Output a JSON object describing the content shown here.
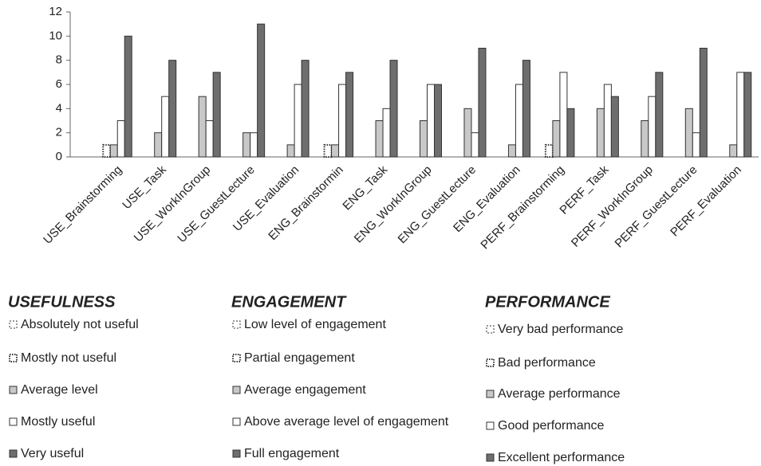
{
  "chart_data": {
    "type": "bar",
    "categories": [
      "USE_Brainstorming",
      "USE_Task",
      "USE_WorkInGroup",
      "USE_GuestLecture",
      "USE_Evaluation",
      "ENG_Brainstormin",
      "ENG_Task",
      "ENG_WorkInGroup",
      "ENG_GuestLecture",
      "ENG_Evaluation",
      "PERF_Brainstorming",
      "PERF_Task",
      "PERF_WorkInGroup",
      "PERF_GuestLecture",
      "PERF_Evaluation"
    ],
    "series": [
      {
        "color": "#ffffff",
        "values": [
          0,
          0,
          0,
          0,
          0,
          0,
          0,
          0,
          0,
          0,
          0,
          0,
          0,
          0,
          0
        ]
      },
      {
        "color": "#ffffff",
        "values": [
          1,
          0,
          0,
          0,
          0,
          1,
          0,
          0,
          0,
          0,
          1,
          0,
          0,
          0,
          0
        ]
      },
      {
        "color": "#c8c8c8",
        "values": [
          1,
          2,
          5,
          2,
          1,
          1,
          3,
          3,
          4,
          1,
          3,
          4,
          3,
          4,
          1
        ]
      },
      {
        "color": "#ffffff",
        "values": [
          3,
          5,
          3,
          2,
          6,
          6,
          4,
          6,
          2,
          6,
          7,
          6,
          5,
          2,
          7
        ]
      },
      {
        "color": "#6e6e6e",
        "values": [
          10,
          8,
          7,
          11,
          8,
          7,
          8,
          6,
          9,
          8,
          4,
          5,
          7,
          9,
          7
        ]
      }
    ],
    "ylim": [
      0,
      12
    ],
    "yticks": [
      0,
      2,
      4,
      6,
      8,
      10,
      12
    ],
    "legend_groups": [
      {
        "title": "USEFULNESS",
        "items": [
          "Absolutely not useful",
          "Mostly not useful",
          "Average level",
          "Mostly useful",
          "Very useful"
        ]
      },
      {
        "title": "ENGAGEMENT",
        "items": [
          "Low level of engagement",
          "Partial engagement",
          "Average engagement",
          "Above average level of engagement",
          "Full engagement"
        ]
      },
      {
        "title": "PERFORMANCE",
        "items": [
          "Very bad performance",
          "Bad performance",
          "Average performance",
          "Good performance",
          "Excellent performance"
        ]
      }
    ]
  }
}
